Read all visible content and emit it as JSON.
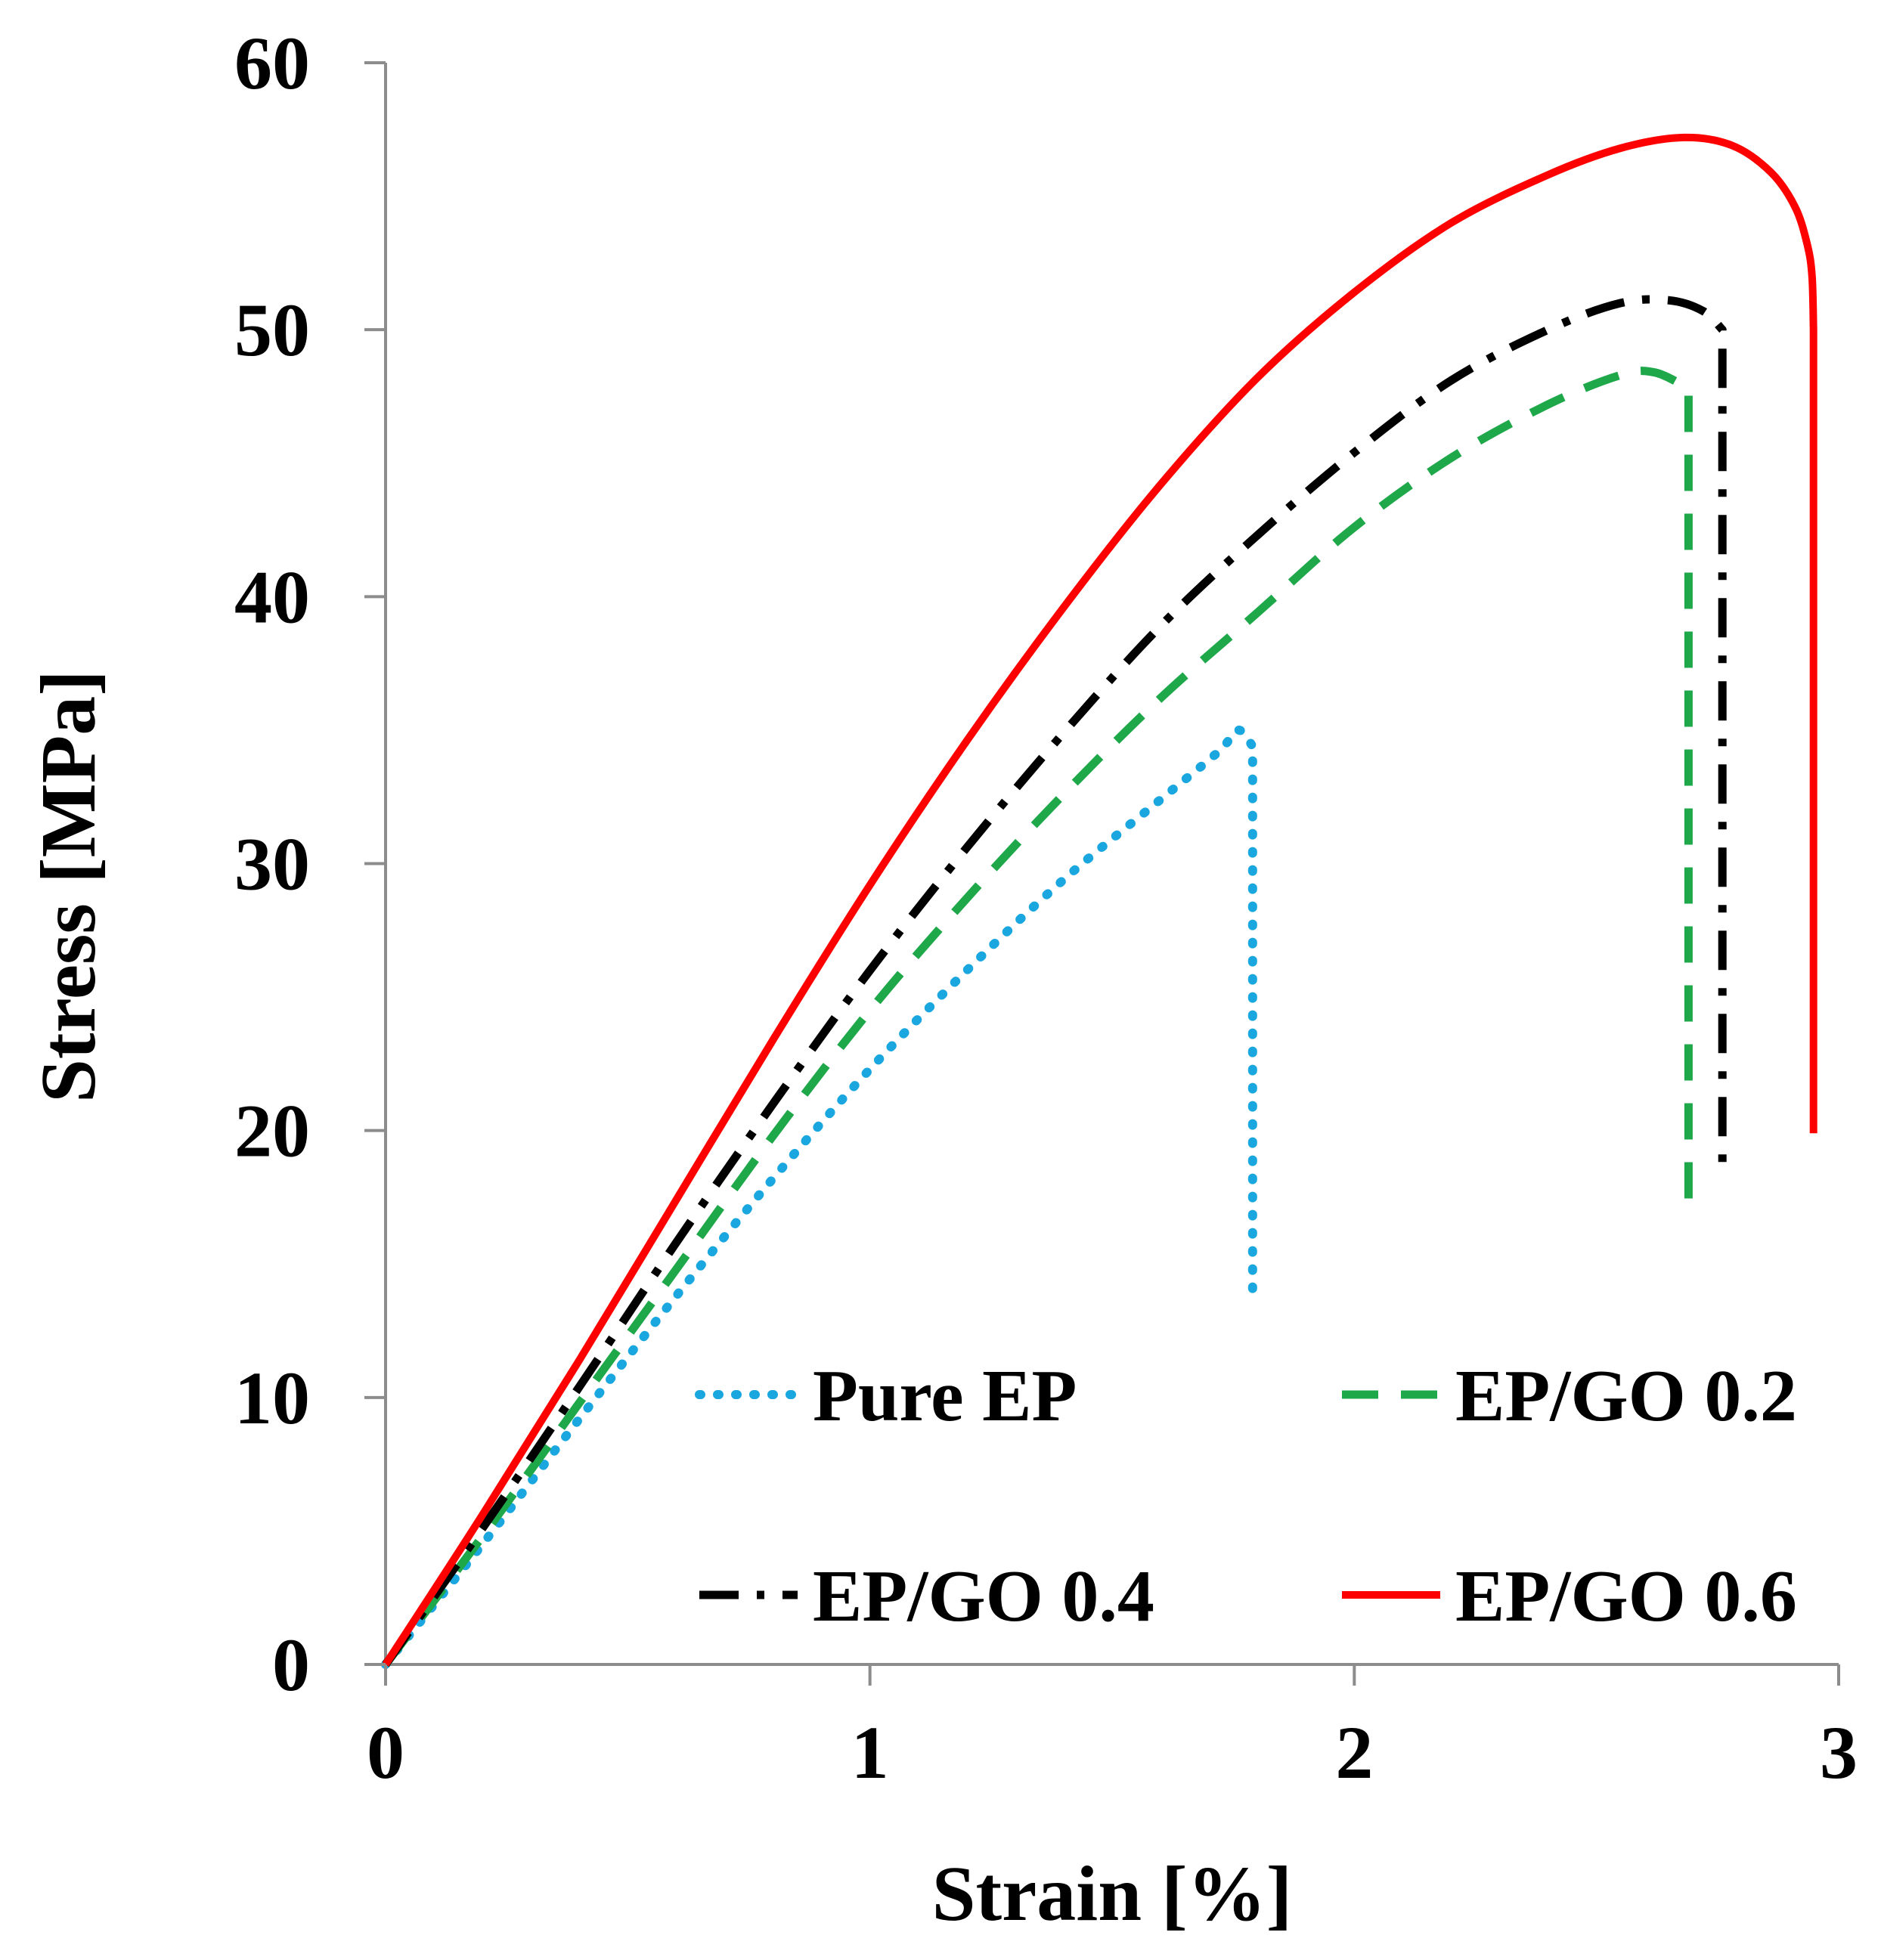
{
  "chart_data": {
    "type": "line",
    "title": "",
    "xlabel": "Strain [%]",
    "ylabel": "Stress [MPa]",
    "xlim": [
      0,
      3
    ],
    "ylim": [
      0,
      60
    ],
    "xticks": [
      "0",
      "1",
      "2",
      "3"
    ],
    "yticks": [
      "0",
      "10",
      "20",
      "30",
      "40",
      "50",
      "60"
    ],
    "grid": false,
    "legend_position": "bottom-right",
    "series": [
      {
        "name": "Pure EP",
        "color": "#1aa7e0",
        "style": "dotted",
        "points": [
          [
            0,
            0
          ],
          [
            0.2,
            4.5
          ],
          [
            0.4,
            9.2
          ],
          [
            0.6,
            13.8
          ],
          [
            0.8,
            18.2
          ],
          [
            1.0,
            22.3
          ],
          [
            1.2,
            26.0
          ],
          [
            1.4,
            29.4
          ],
          [
            1.6,
            32.4
          ],
          [
            1.72,
            34.2
          ],
          [
            1.76,
            35.0
          ],
          [
            1.79,
            34.4
          ],
          [
            1.79,
            13.7
          ]
        ]
      },
      {
        "name": "EP/GO 0.2",
        "color": "#1fa84a",
        "style": "dashed",
        "points": [
          [
            0,
            0
          ],
          [
            0.2,
            4.8
          ],
          [
            0.4,
            9.8
          ],
          [
            0.6,
            14.8
          ],
          [
            0.8,
            19.8
          ],
          [
            1.0,
            24.5
          ],
          [
            1.2,
            28.7
          ],
          [
            1.4,
            32.6
          ],
          [
            1.6,
            36.2
          ],
          [
            1.8,
            39.4
          ],
          [
            2.0,
            42.6
          ],
          [
            2.2,
            45.2
          ],
          [
            2.4,
            47.2
          ],
          [
            2.55,
            48.3
          ],
          [
            2.62,
            48.4
          ],
          [
            2.69,
            47.8
          ],
          [
            2.69,
            17.3
          ]
        ]
      },
      {
        "name": "EP/GO 0.4",
        "color": "#000000",
        "style": "dash-dot",
        "points": [
          [
            0,
            0
          ],
          [
            0.2,
            5.1
          ],
          [
            0.4,
            10.4
          ],
          [
            0.6,
            15.8
          ],
          [
            0.8,
            21.0
          ],
          [
            1.0,
            26.0
          ],
          [
            1.2,
            30.6
          ],
          [
            1.4,
            34.9
          ],
          [
            1.6,
            38.9
          ],
          [
            1.8,
            42.3
          ],
          [
            2.0,
            45.4
          ],
          [
            2.2,
            48.1
          ],
          [
            2.4,
            50.0
          ],
          [
            2.55,
            51.0
          ],
          [
            2.65,
            51.1
          ],
          [
            2.72,
            50.7
          ],
          [
            2.76,
            50.0
          ],
          [
            2.76,
            18.5
          ]
        ]
      },
      {
        "name": "EP/GO 0.6",
        "color": "#ff0000",
        "style": "solid",
        "points": [
          [
            0,
            0
          ],
          [
            0.2,
            5.6
          ],
          [
            0.4,
            11.4
          ],
          [
            0.6,
            17.4
          ],
          [
            0.8,
            23.4
          ],
          [
            1.0,
            29.2
          ],
          [
            1.2,
            34.6
          ],
          [
            1.4,
            39.6
          ],
          [
            1.6,
            44.2
          ],
          [
            1.8,
            48.2
          ],
          [
            2.0,
            51.4
          ],
          [
            2.2,
            54.0
          ],
          [
            2.4,
            55.8
          ],
          [
            2.55,
            56.8
          ],
          [
            2.68,
            57.2
          ],
          [
            2.78,
            56.9
          ],
          [
            2.86,
            55.9
          ],
          [
            2.91,
            54.6
          ],
          [
            2.935,
            53.2
          ],
          [
            2.945,
            52.0
          ],
          [
            2.948,
            50.0
          ],
          [
            2.948,
            19.9
          ]
        ]
      }
    ]
  }
}
